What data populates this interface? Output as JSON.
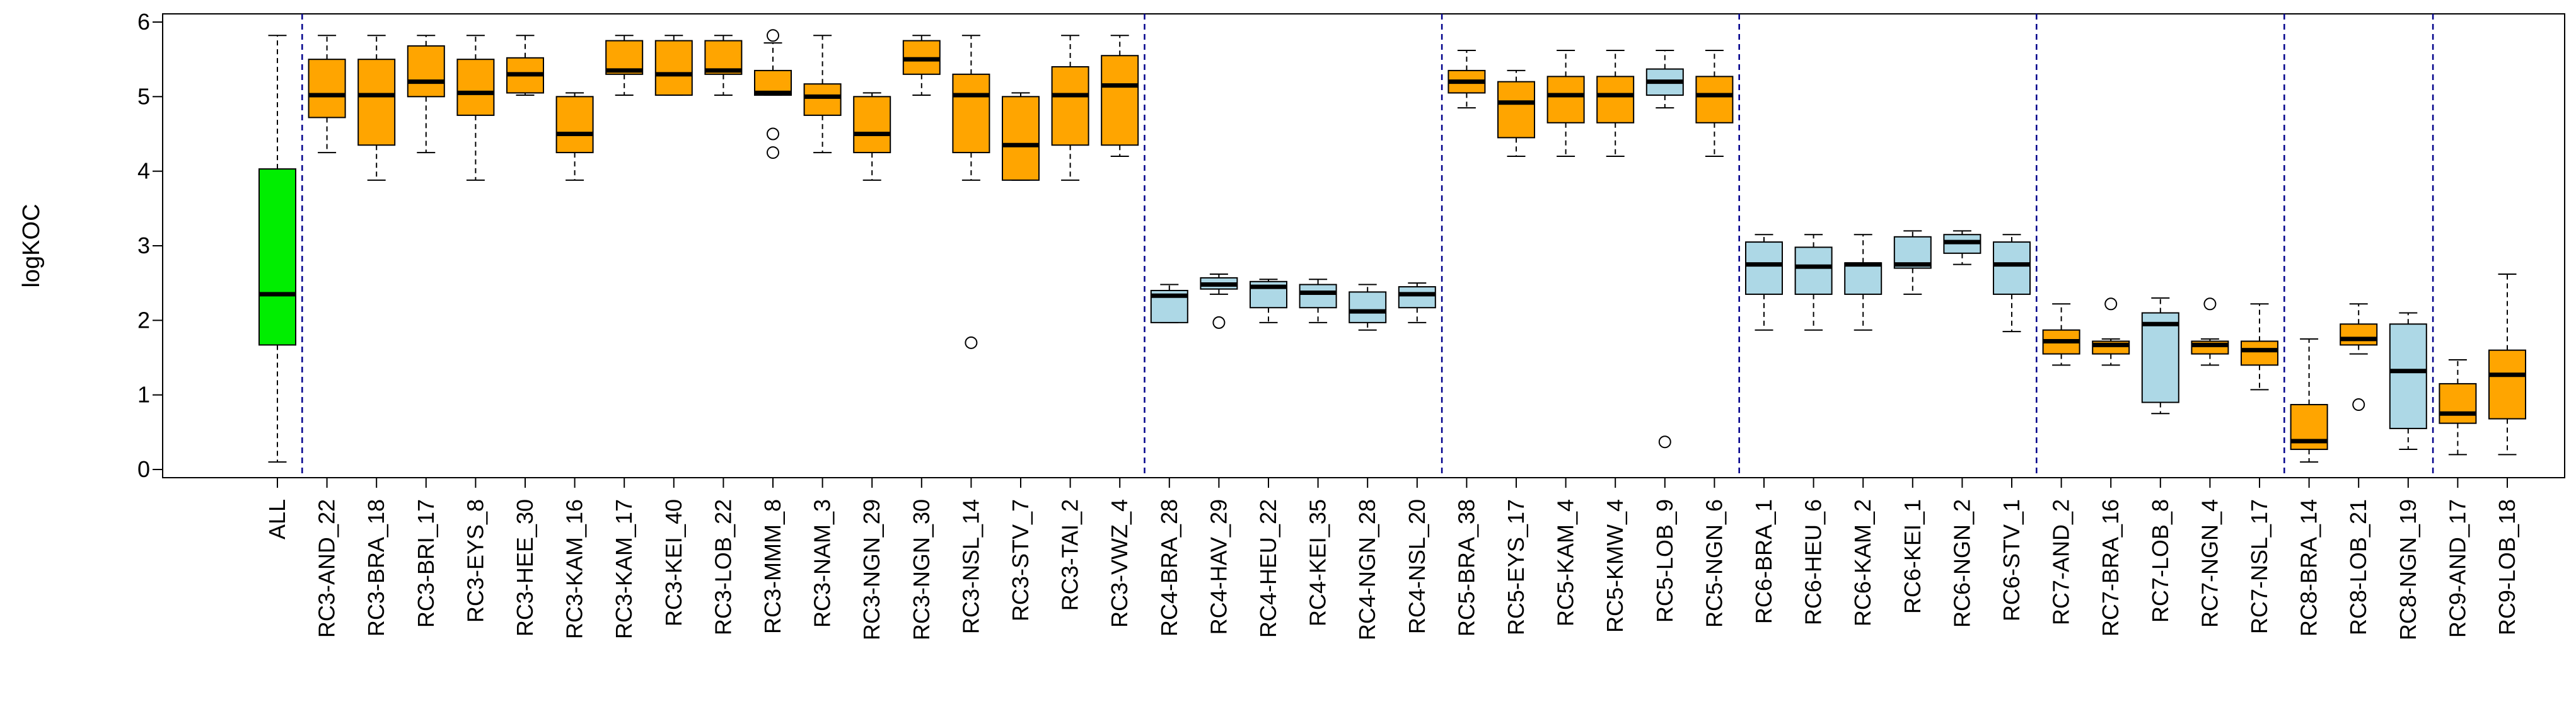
{
  "chart_data": {
    "type": "boxplot",
    "title": "",
    "xlabel": "",
    "ylabel": "logKOC",
    "ylim": [
      0,
      6
    ],
    "yticks": [
      0,
      1,
      2,
      3,
      4,
      5,
      6
    ],
    "colors": {
      "all": "#00ee00",
      "orange": "#ffa500",
      "blue": "#add8e6",
      "separator": "#00008b",
      "outline": "#000000"
    },
    "separators_after": [
      "ALL",
      "RC3-VWZ_4",
      "RC4-NSL_20",
      "RC5-NGN_6",
      "RC6-STV_1",
      "RC7-NSL_17",
      "RC8-NGN_19"
    ],
    "boxes": [
      {
        "label": "ALL",
        "color": "all",
        "min": 0.1,
        "q1": 1.67,
        "median": 2.35,
        "q3": 4.03,
        "max": 5.82,
        "outliers": []
      },
      {
        "label": "RC3-AND_22",
        "color": "orange",
        "min": 4.25,
        "q1": 4.72,
        "median": 5.02,
        "q3": 5.5,
        "max": 5.82,
        "outliers": []
      },
      {
        "label": "RC3-BRA_18",
        "color": "orange",
        "min": 3.88,
        "q1": 4.35,
        "median": 5.02,
        "q3": 5.5,
        "max": 5.82,
        "outliers": []
      },
      {
        "label": "RC3-BRI_17",
        "color": "orange",
        "min": 4.25,
        "q1": 5.0,
        "median": 5.2,
        "q3": 5.68,
        "max": 5.82,
        "outliers": []
      },
      {
        "label": "RC3-EYS_8",
        "color": "orange",
        "min": 3.88,
        "q1": 4.75,
        "median": 5.05,
        "q3": 5.5,
        "max": 5.82,
        "outliers": []
      },
      {
        "label": "RC3-HEE_30",
        "color": "orange",
        "min": 5.02,
        "q1": 5.05,
        "median": 5.3,
        "q3": 5.52,
        "max": 5.82,
        "outliers": []
      },
      {
        "label": "RC3-KAM_16",
        "color": "orange",
        "min": 3.88,
        "q1": 4.25,
        "median": 4.5,
        "q3": 5.0,
        "max": 5.05,
        "outliers": []
      },
      {
        "label": "RC3-KAM_17",
        "color": "orange",
        "min": 5.02,
        "q1": 5.3,
        "median": 5.35,
        "q3": 5.75,
        "max": 5.82,
        "outliers": []
      },
      {
        "label": "RC3-KEI_40",
        "color": "orange",
        "min": 5.02,
        "q1": 5.02,
        "median": 5.3,
        "q3": 5.75,
        "max": 5.82,
        "outliers": []
      },
      {
        "label": "RC3-LOB_22",
        "color": "orange",
        "min": 5.02,
        "q1": 5.3,
        "median": 5.35,
        "q3": 5.75,
        "max": 5.82,
        "outliers": []
      },
      {
        "label": "RC3-MMM_8",
        "color": "orange",
        "min": 5.02,
        "q1": 5.02,
        "median": 5.05,
        "q3": 5.35,
        "max": 5.72,
        "outliers": [
          5.82,
          4.5,
          4.25
        ]
      },
      {
        "label": "RC3-NAM_3",
        "color": "orange",
        "min": 4.25,
        "q1": 4.75,
        "median": 5.0,
        "q3": 5.17,
        "max": 5.82,
        "outliers": []
      },
      {
        "label": "RC3-NGN_29",
        "color": "orange",
        "min": 3.88,
        "q1": 4.25,
        "median": 4.5,
        "q3": 5.0,
        "max": 5.05,
        "outliers": []
      },
      {
        "label": "RC3-NGN_30",
        "color": "orange",
        "min": 5.02,
        "q1": 5.3,
        "median": 5.5,
        "q3": 5.75,
        "max": 5.82,
        "outliers": []
      },
      {
        "label": "RC3-NSL_14",
        "color": "orange",
        "min": 3.88,
        "q1": 4.25,
        "median": 5.02,
        "q3": 5.3,
        "max": 5.82,
        "outliers": [
          1.7
        ]
      },
      {
        "label": "RC3-STV_7",
        "color": "orange",
        "min": 3.88,
        "q1": 3.88,
        "median": 4.35,
        "q3": 5.0,
        "max": 5.05,
        "outliers": []
      },
      {
        "label": "RC3-TAI_2",
        "color": "orange",
        "min": 3.88,
        "q1": 4.35,
        "median": 5.02,
        "q3": 5.4,
        "max": 5.82,
        "outliers": []
      },
      {
        "label": "RC3-VWZ_4",
        "color": "orange",
        "min": 4.2,
        "q1": 4.35,
        "median": 5.15,
        "q3": 5.55,
        "max": 5.82,
        "outliers": []
      },
      {
        "label": "RC4-BRA_28",
        "color": "blue",
        "min": 1.97,
        "q1": 1.97,
        "median": 2.33,
        "q3": 2.4,
        "max": 2.48,
        "outliers": []
      },
      {
        "label": "RC4-HAV_29",
        "color": "blue",
        "min": 2.35,
        "q1": 2.42,
        "median": 2.48,
        "q3": 2.57,
        "max": 2.62,
        "outliers": [
          1.97
        ]
      },
      {
        "label": "RC4-HEU_22",
        "color": "blue",
        "min": 1.97,
        "q1": 2.17,
        "median": 2.45,
        "q3": 2.52,
        "max": 2.55,
        "outliers": []
      },
      {
        "label": "RC4-KEI_35",
        "color": "blue",
        "min": 1.97,
        "q1": 2.17,
        "median": 2.37,
        "q3": 2.48,
        "max": 2.55,
        "outliers": []
      },
      {
        "label": "RC4-NGN_28",
        "color": "blue",
        "min": 1.87,
        "q1": 1.97,
        "median": 2.12,
        "q3": 2.38,
        "max": 2.48,
        "outliers": []
      },
      {
        "label": "RC4-NSL_20",
        "color": "blue",
        "min": 1.97,
        "q1": 2.17,
        "median": 2.35,
        "q3": 2.45,
        "max": 2.5,
        "outliers": []
      },
      {
        "label": "RC5-BRA_38",
        "color": "orange",
        "min": 4.85,
        "q1": 5.05,
        "median": 5.2,
        "q3": 5.35,
        "max": 5.62,
        "outliers": []
      },
      {
        "label": "RC5-EYS_17",
        "color": "orange",
        "min": 4.2,
        "q1": 4.45,
        "median": 4.92,
        "q3": 5.2,
        "max": 5.35,
        "outliers": []
      },
      {
        "label": "RC5-KAM_4",
        "color": "orange",
        "min": 4.2,
        "q1": 4.65,
        "median": 5.02,
        "q3": 5.27,
        "max": 5.62,
        "outliers": []
      },
      {
        "label": "RC5-KMW_4",
        "color": "orange",
        "min": 4.2,
        "q1": 4.65,
        "median": 5.02,
        "q3": 5.27,
        "max": 5.62,
        "outliers": []
      },
      {
        "label": "RC5-LOB_9",
        "color": "blue",
        "min": 4.85,
        "q1": 5.02,
        "median": 5.2,
        "q3": 5.37,
        "max": 5.62,
        "outliers": [
          0.37
        ]
      },
      {
        "label": "RC5-NGN_6",
        "color": "orange",
        "min": 4.2,
        "q1": 4.65,
        "median": 5.02,
        "q3": 5.27,
        "max": 5.62,
        "outliers": []
      },
      {
        "label": "RC6-BRA_1",
        "color": "blue",
        "min": 1.87,
        "q1": 2.35,
        "median": 2.75,
        "q3": 3.05,
        "max": 3.15,
        "outliers": []
      },
      {
        "label": "RC6-HEU_6",
        "color": "blue",
        "min": 1.87,
        "q1": 2.35,
        "median": 2.72,
        "q3": 2.98,
        "max": 3.15,
        "outliers": []
      },
      {
        "label": "RC6-KAM_2",
        "color": "blue",
        "min": 1.87,
        "q1": 2.35,
        "median": 2.75,
        "q3": 2.77,
        "max": 3.15,
        "outliers": []
      },
      {
        "label": "RC6-KEI_1",
        "color": "blue",
        "min": 2.35,
        "q1": 2.7,
        "median": 2.75,
        "q3": 3.12,
        "max": 3.2,
        "outliers": []
      },
      {
        "label": "RC6-NGN_2",
        "color": "blue",
        "min": 2.75,
        "q1": 2.9,
        "median": 3.05,
        "q3": 3.15,
        "max": 3.2,
        "outliers": []
      },
      {
        "label": "RC6-STV_1",
        "color": "blue",
        "min": 1.85,
        "q1": 2.35,
        "median": 2.75,
        "q3": 3.05,
        "max": 3.15,
        "outliers": []
      },
      {
        "label": "RC7-AND_2",
        "color": "orange",
        "min": 1.4,
        "q1": 1.55,
        "median": 1.72,
        "q3": 1.87,
        "max": 2.22,
        "outliers": []
      },
      {
        "label": "RC7-BRA_16",
        "color": "orange",
        "min": 1.4,
        "q1": 1.55,
        "median": 1.67,
        "q3": 1.72,
        "max": 1.75,
        "outliers": [
          2.22
        ]
      },
      {
        "label": "RC7-LOB_8",
        "color": "blue",
        "min": 0.75,
        "q1": 0.9,
        "median": 1.95,
        "q3": 2.1,
        "max": 2.3,
        "outliers": []
      },
      {
        "label": "RC7-NGN_4",
        "color": "orange",
        "min": 1.4,
        "q1": 1.55,
        "median": 1.67,
        "q3": 1.72,
        "max": 1.75,
        "outliers": [
          2.22
        ]
      },
      {
        "label": "RC7-NSL_17",
        "color": "orange",
        "min": 1.07,
        "q1": 1.4,
        "median": 1.6,
        "q3": 1.72,
        "max": 2.22,
        "outliers": []
      },
      {
        "label": "RC8-BRA_14",
        "color": "orange",
        "min": 0.1,
        "q1": 0.27,
        "median": 0.38,
        "q3": 0.87,
        "max": 1.75,
        "outliers": []
      },
      {
        "label": "RC8-LOB_21",
        "color": "orange",
        "min": 1.55,
        "q1": 1.67,
        "median": 1.75,
        "q3": 1.95,
        "max": 2.22,
        "outliers": [
          0.87
        ]
      },
      {
        "label": "RC8-NGN_19",
        "color": "blue",
        "min": 0.27,
        "q1": 0.55,
        "median": 1.32,
        "q3": 1.95,
        "max": 2.1,
        "outliers": []
      },
      {
        "label": "RC9-AND_17",
        "color": "orange",
        "min": 0.2,
        "q1": 0.62,
        "median": 0.75,
        "q3": 1.15,
        "max": 1.47,
        "outliers": []
      },
      {
        "label": "RC9-LOB_18",
        "color": "orange",
        "min": 0.2,
        "q1": 0.68,
        "median": 1.27,
        "q3": 1.6,
        "max": 2.62,
        "outliers": []
      }
    ]
  }
}
